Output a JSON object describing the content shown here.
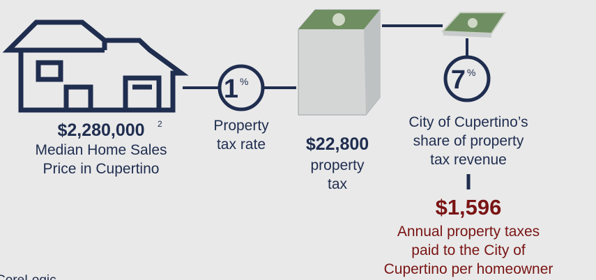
{
  "home": {
    "price": "$2,280,000",
    "footnote": "2",
    "caption": [
      "Median Home Sales",
      "Price in Cupertino"
    ]
  },
  "rate": {
    "number": "1",
    "unit": "%",
    "caption": [
      "Property",
      "tax rate"
    ]
  },
  "tax": {
    "amount": "$22,800",
    "caption": [
      "property",
      "tax"
    ]
  },
  "share": {
    "number": "7",
    "unit": "%",
    "caption": [
      "City of Cupertino’s",
      "share of property",
      "tax revenue"
    ]
  },
  "result": {
    "amount": "$1,596",
    "caption": [
      "Annual property taxes",
      "paid to the City of",
      "Cupertino per homeowner"
    ]
  },
  "source": "CoreLogic"
}
